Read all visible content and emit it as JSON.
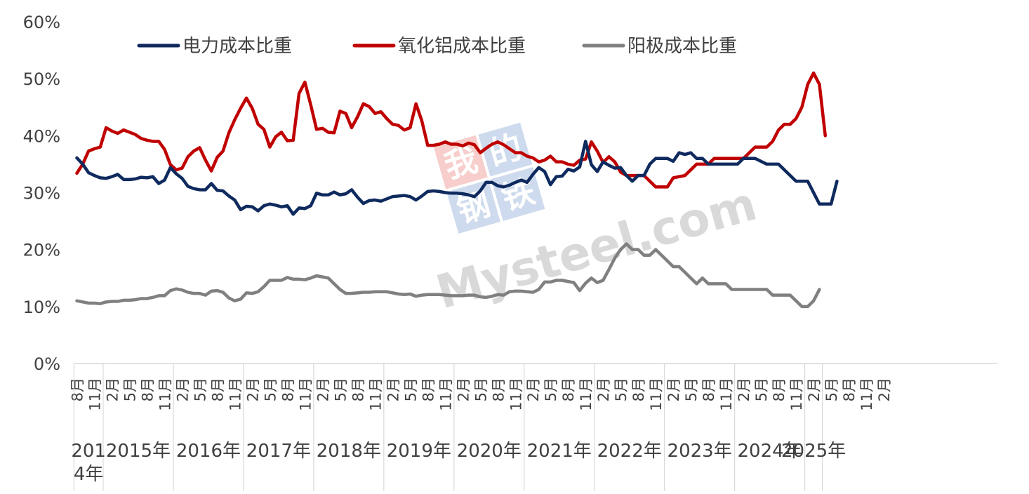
{
  "chart_data": {
    "type": "line",
    "ylim": [
      0,
      60
    ],
    "y_ticks": [
      "0%",
      "10%",
      "20%",
      "30%",
      "40%",
      "50%",
      "60%"
    ],
    "x_tick_labels": [
      "8月",
      "11月",
      "2月",
      "5月",
      "8月",
      "11月",
      "2月",
      "5月",
      "8月",
      "11月",
      "2月",
      "5月",
      "8月",
      "11月",
      "2月",
      "5月",
      "8月",
      "11月",
      "2月",
      "5月",
      "8月",
      "11月",
      "2月",
      "5月",
      "8月",
      "11月",
      "2月",
      "5月",
      "8月",
      "11月",
      "2月",
      "5月",
      "8月",
      "11月",
      "2月",
      "5月",
      "8月",
      "11月",
      "2月",
      "5月",
      "8月",
      "11月",
      "2月",
      "5月",
      "8月",
      "11月",
      "2月"
    ],
    "years": [
      {
        "label": "2014年",
        "line1": "201",
        "line2": "4年"
      },
      {
        "label": "2015年"
      },
      {
        "label": "2016年"
      },
      {
        "label": "2017年"
      },
      {
        "label": "2018年"
      },
      {
        "label": "2019年"
      },
      {
        "label": "2020年"
      },
      {
        "label": "2021年"
      },
      {
        "label": "2022年"
      },
      {
        "label": "2023年"
      },
      {
        "label": "2024年"
      },
      {
        "label": "2025年"
      }
    ],
    "x_start": "2014-08",
    "x_end": "2025-03",
    "grid": false,
    "legend_position": "top",
    "series": [
      {
        "name": "电力成本比重",
        "color": "#0f2a5e",
        "values": [
          36.1,
          35.0,
          33.5,
          33.0,
          32.6,
          32.5,
          32.8,
          33.2,
          32.3,
          32.3,
          32.4,
          32.7,
          32.6,
          32.8,
          31.6,
          32.2,
          34.4,
          33.3,
          32.5,
          31.1,
          30.7,
          30.5,
          30.5,
          31.6,
          30.4,
          30.3,
          29.4,
          28.7,
          27.0,
          27.6,
          27.5,
          26.8,
          27.7,
          28.0,
          27.8,
          27.5,
          27.7,
          26.2,
          27.3,
          27.2,
          27.7,
          29.9,
          29.6,
          29.6,
          30.1,
          29.6,
          29.8,
          30.5,
          29.2,
          28.1,
          28.6,
          28.7,
          28.5,
          28.9,
          29.3,
          29.4,
          29.5,
          29.3,
          28.7,
          29.4,
          30.2,
          30.3,
          30.2,
          30.0,
          29.9,
          29.9,
          29.8,
          29.6,
          29.3,
          30.3,
          31.8,
          31.8,
          31.2,
          31.0,
          31.3,
          31.8,
          32.2,
          31.8,
          33.2,
          34.4,
          33.7,
          31.4,
          32.8,
          32.9,
          34.1,
          33.8,
          34.5,
          39.0,
          34.9,
          33.7,
          35.4,
          34.8,
          34.3,
          34.4,
          33.0,
          32.0,
          33.0,
          33.0,
          35.0,
          36.0,
          36.0,
          36.0,
          35.5,
          37.0,
          36.7,
          37.0,
          36.0,
          36.0,
          35.0,
          35.0,
          35.0,
          35.0,
          35.0,
          35.0,
          36.0,
          36.0,
          36.0,
          35.5,
          35.0,
          35.0,
          35.0,
          34.0,
          33.0,
          32.0,
          32.0,
          32.0,
          30.0,
          28.0,
          28.0,
          28.0,
          32.0
        ]
      },
      {
        "name": "氧化铝成本比重",
        "color": "#c00000",
        "values": [
          33.4,
          35.0,
          37.3,
          37.7,
          38.0,
          41.4,
          40.8,
          40.4,
          41.0,
          40.6,
          40.2,
          39.5,
          39.2,
          39.0,
          39.0,
          37.6,
          34.9,
          34.0,
          34.3,
          36.3,
          37.3,
          37.9,
          35.7,
          33.8,
          36.2,
          37.3,
          40.5,
          42.8,
          44.8,
          46.6,
          44.8,
          42.0,
          41.1,
          38.0,
          39.8,
          40.6,
          39.1,
          39.2,
          47.4,
          49.4,
          45.4,
          41.1,
          41.3,
          40.6,
          40.5,
          44.3,
          43.9,
          41.4,
          43.3,
          45.6,
          45.1,
          43.9,
          44.2,
          43.0,
          42.0,
          41.8,
          41.0,
          41.4,
          45.6,
          42.6,
          38.3,
          38.3,
          38.5,
          38.9,
          38.5,
          38.5,
          38.2,
          38.7,
          38.4,
          37.0,
          37.8,
          38.5,
          38.9,
          38.4,
          37.7,
          37.0,
          37.0,
          36.4,
          36.1,
          35.4,
          35.7,
          36.4,
          35.4,
          35.4,
          35.0,
          34.8,
          35.7,
          35.9,
          38.9,
          37.3,
          35.3,
          36.3,
          35.4,
          33.6,
          33.0,
          33.0,
          33.0,
          33.0,
          32.0,
          31.0,
          31.0,
          31.0,
          32.6,
          32.8,
          33.0,
          34.0,
          35.0,
          35.0,
          35.0,
          36.0,
          36.0,
          36.0,
          36.0,
          36.0,
          36.0,
          37.0,
          38.0,
          38.0,
          38.0,
          39.0,
          41.0,
          42.0,
          42.0,
          43.0,
          45.0,
          49.0,
          51.0,
          49.0,
          40.0
        ]
      },
      {
        "name": "阳极成本比重",
        "color": "#808080",
        "values": [
          11.0,
          10.8,
          10.6,
          10.6,
          10.5,
          10.8,
          10.9,
          10.9,
          11.1,
          11.1,
          11.2,
          11.4,
          11.4,
          11.6,
          11.9,
          11.9,
          12.8,
          13.1,
          12.9,
          12.5,
          12.3,
          12.3,
          12.0,
          12.7,
          12.8,
          12.5,
          11.5,
          11.0,
          11.3,
          12.4,
          12.3,
          12.6,
          13.5,
          14.6,
          14.6,
          14.6,
          15.1,
          14.8,
          14.8,
          14.7,
          15.0,
          15.4,
          15.2,
          15.0,
          14.0,
          13.0,
          12.3,
          12.3,
          12.4,
          12.5,
          12.5,
          12.6,
          12.6,
          12.6,
          12.4,
          12.2,
          12.1,
          12.2,
          11.8,
          12.0,
          12.1,
          12.1,
          12.1,
          12.0,
          11.9,
          11.9,
          11.9,
          12.0,
          12.0,
          11.7,
          11.6,
          11.8,
          12.1,
          12.0,
          12.6,
          12.7,
          12.7,
          12.6,
          12.5,
          13.0,
          14.3,
          14.3,
          14.6,
          14.6,
          14.4,
          14.2,
          12.8,
          14.1,
          15.0,
          14.2,
          14.6,
          16.5,
          18.5,
          20.0,
          21.0,
          20.0,
          20.0,
          19.0,
          19.0,
          20.0,
          19.0,
          18.0,
          17.0,
          17.0,
          16.0,
          15.0,
          14.0,
          15.0,
          14.0,
          14.0,
          14.0,
          14.0,
          13.0,
          13.0,
          13.0,
          13.0,
          13.0,
          13.0,
          13.0,
          12.0,
          12.0,
          12.0,
          12.0,
          11.0,
          10.0,
          10.0,
          11.0,
          13.0
        ]
      }
    ]
  },
  "watermark": {
    "logo_chars": [
      "我",
      "的",
      "钢",
      "铁"
    ],
    "text": "Mysteel.com"
  }
}
